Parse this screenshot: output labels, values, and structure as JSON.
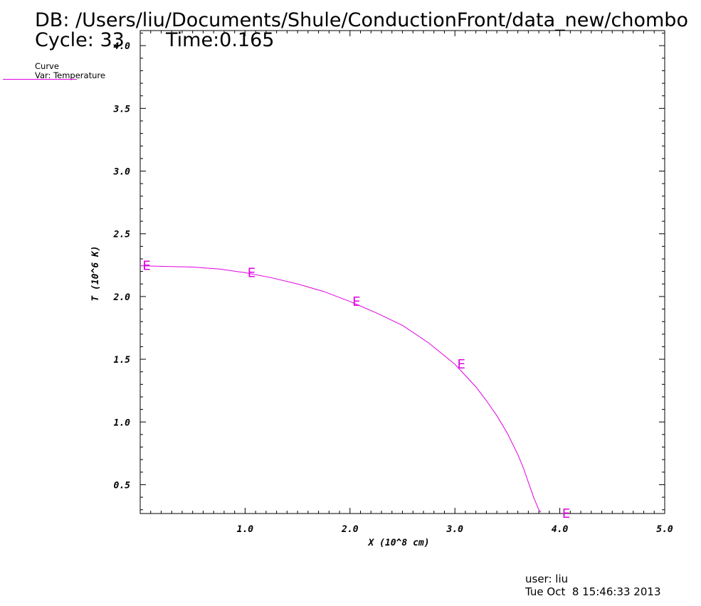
{
  "header": {
    "db_label": "DB: /Users/liu/Documents/Shule/ConductionFront/data_new/chombo",
    "cycle_label": "Cycle: 33",
    "time_label": "Time:0.165"
  },
  "legend": {
    "title": "Curve",
    "var_label": "Var: Temperature",
    "color": "#e000e0"
  },
  "footer": {
    "user_label": "user: liu",
    "timestamp": "Tue Oct  8 15:46:33 2013"
  },
  "chart_data": {
    "type": "line",
    "xlabel": "X (10^8 cm)",
    "ylabel": "T (10^6 K)",
    "xlim": [
      0.0,
      5.0
    ],
    "ylim": [
      0.27,
      4.12
    ],
    "x_ticks": [
      {
        "value": 1.0,
        "label": "1.0"
      },
      {
        "value": 2.0,
        "label": "2.0"
      },
      {
        "value": 3.0,
        "label": "3.0"
      },
      {
        "value": 4.0,
        "label": "4.0"
      },
      {
        "value": 5.0,
        "label": "5.0"
      }
    ],
    "y_ticks": [
      {
        "value": 0.5,
        "label": "0.5"
      },
      {
        "value": 1.0,
        "label": "1.0"
      },
      {
        "value": 1.5,
        "label": "1.5"
      },
      {
        "value": 2.0,
        "label": "2.0"
      },
      {
        "value": 2.5,
        "label": "2.5"
      },
      {
        "value": 3.0,
        "label": "3.0"
      },
      {
        "value": 3.5,
        "label": "3.5"
      },
      {
        "value": 4.0,
        "label": "4.0"
      }
    ],
    "grid": false,
    "series": [
      {
        "color": "#e000e0",
        "x": [
          0.0,
          0.25,
          0.5,
          0.75,
          1.0,
          1.25,
          1.5,
          1.75,
          2.0,
          2.25,
          2.5,
          2.75,
          3.0,
          3.1,
          3.2,
          3.3,
          3.4,
          3.5,
          3.6,
          3.65,
          3.7,
          3.75,
          3.8,
          3.82
        ],
        "y": [
          2.245,
          2.24,
          2.235,
          2.22,
          2.19,
          2.15,
          2.1,
          2.04,
          1.96,
          1.87,
          1.77,
          1.63,
          1.46,
          1.37,
          1.28,
          1.17,
          1.05,
          0.91,
          0.74,
          0.64,
          0.52,
          0.4,
          0.3,
          0.28
        ],
        "markers": [
          {
            "x": 0.0,
            "y": 2.245,
            "label": "E"
          },
          {
            "x": 1.0,
            "y": 2.19,
            "label": "E"
          },
          {
            "x": 2.0,
            "y": 1.96,
            "label": "E"
          },
          {
            "x": 3.0,
            "y": 1.46,
            "label": "E"
          },
          {
            "x": 4.0,
            "y": 0.27,
            "label": "E"
          }
        ]
      }
    ]
  }
}
